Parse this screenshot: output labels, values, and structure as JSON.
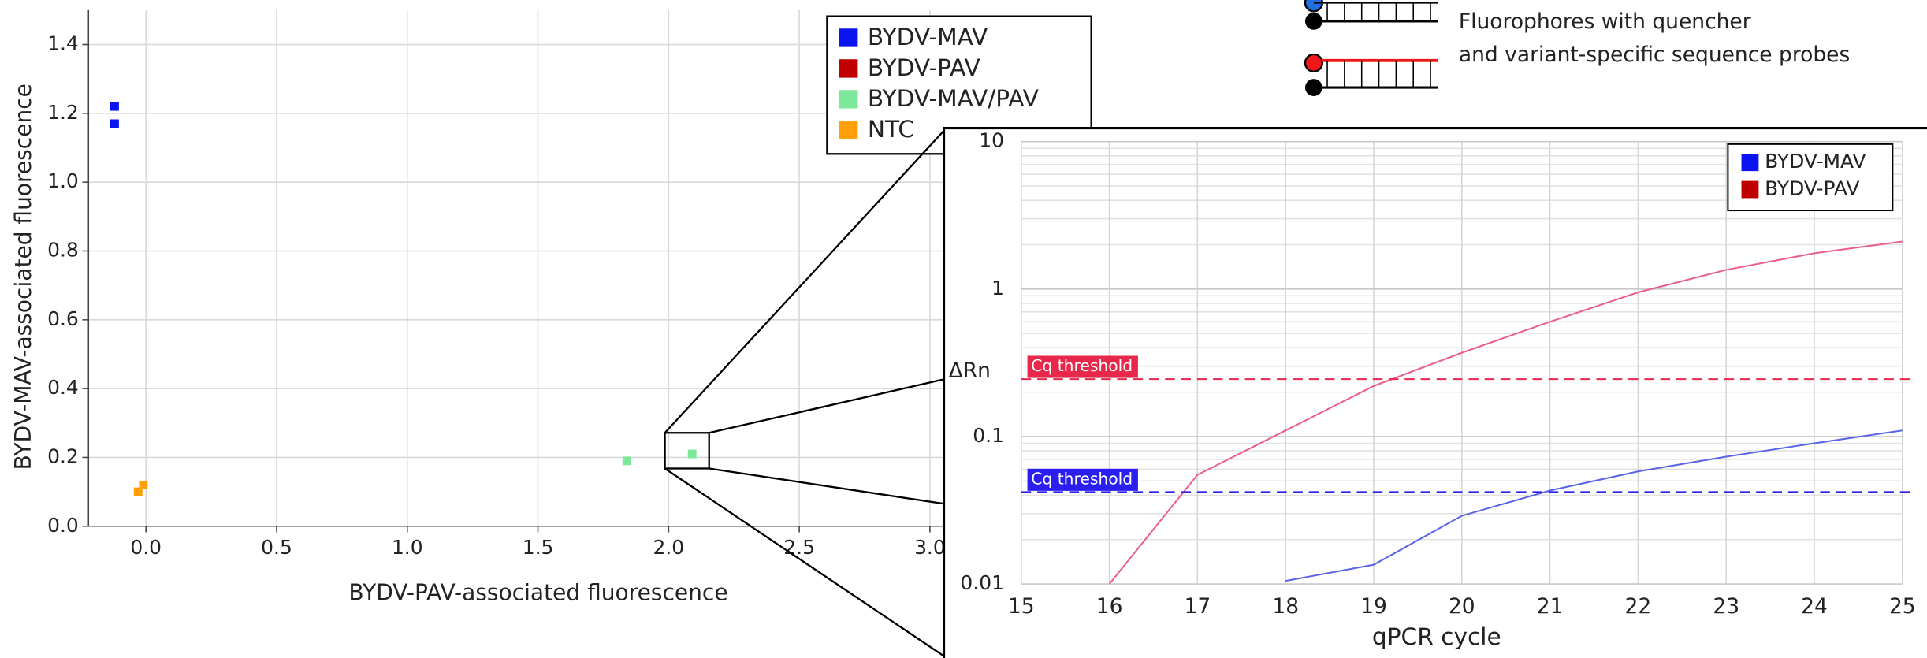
{
  "chart_data": [
    {
      "type": "scatter",
      "xlabel": "BYDV-PAV-associated fluorescence",
      "ylabel": "BYDV-MAV-associated fluorescence",
      "xlim": [
        -0.22,
        3.5
      ],
      "ylim": [
        0,
        1.5
      ],
      "xticks": [
        {
          "value": 0,
          "label": "0.0"
        },
        {
          "value": 0.5,
          "label": "0.5"
        },
        {
          "value": 1,
          "label": "1.0"
        },
        {
          "value": 1.5,
          "label": "1.5"
        },
        {
          "value": 2,
          "label": "2.0"
        },
        {
          "value": 2.5,
          "label": "2.5"
        },
        {
          "value": 3,
          "label": "3.0"
        }
      ],
      "yticks": [
        {
          "value": 0,
          "label": "0.0"
        },
        {
          "value": 0.2,
          "label": "0.2"
        },
        {
          "value": 0.4,
          "label": "0.4"
        },
        {
          "value": 0.6,
          "label": "0.6"
        },
        {
          "value": 0.8,
          "label": "0.8"
        },
        {
          "value": 1,
          "label": "1.0"
        },
        {
          "value": 1.2,
          "label": "1.2"
        },
        {
          "value": 1.4,
          "label": "1.4"
        }
      ],
      "grid": true,
      "series": [
        {
          "name": "BYDV-MAV",
          "color": "#0a14f0",
          "x": [
            -0.12,
            -0.12
          ],
          "values": [
            1.22,
            1.17
          ]
        },
        {
          "name": "BYDV-PAV",
          "color": "#c00000",
          "x": [],
          "values": []
        },
        {
          "name": "BYDV-MAV/PAV",
          "color": "#7de89a",
          "x": [
            1.84,
            2.09
          ],
          "values": [
            0.19,
            0.21
          ]
        },
        {
          "name": "NTC",
          "color": "#ff9f0a",
          "x": [
            -0.03,
            -0.01
          ],
          "values": [
            0.1,
            0.12
          ]
        }
      ]
    },
    {
      "type": "line",
      "xlabel": "qPCR cycle",
      "ylabel": "ΔRn",
      "log_y": true,
      "xlim": [
        15,
        25
      ],
      "ylim": [
        0.01,
        10
      ],
      "xticks": [
        15,
        16,
        17,
        18,
        19,
        20,
        21,
        22,
        23,
        24,
        25
      ],
      "yticks": [
        0.01,
        0.1,
        1,
        10
      ],
      "grid": true,
      "x": [
        15,
        16,
        17,
        18,
        19,
        20,
        21,
        22,
        23,
        24,
        25
      ],
      "series": [
        {
          "name": "BYDV-MAV",
          "color": "#0a14f0",
          "line_color": "#5a64e6",
          "values": [
            null,
            null,
            null,
            0.0105,
            0.0135,
            0.029,
            0.043,
            0.058,
            0.073,
            0.09,
            0.11
          ]
        },
        {
          "name": "BYDV-PAV",
          "color": "#c00000",
          "line_color": "#e8608a",
          "values": [
            null,
            0.01,
            0.055,
            0.11,
            0.22,
            0.37,
            0.6,
            0.95,
            1.35,
            1.75,
            2.1
          ]
        }
      ],
      "thresholds": [
        {
          "label": "Cq threshold",
          "value": 0.245,
          "color": "#e8284a"
        },
        {
          "label": "Cq threshold",
          "value": 0.042,
          "color": "#2a1ef0"
        }
      ]
    }
  ],
  "diagram": {
    "label_lines": [
      "Fluorophores with quencher",
      "and variant-specific sequence probes"
    ]
  }
}
